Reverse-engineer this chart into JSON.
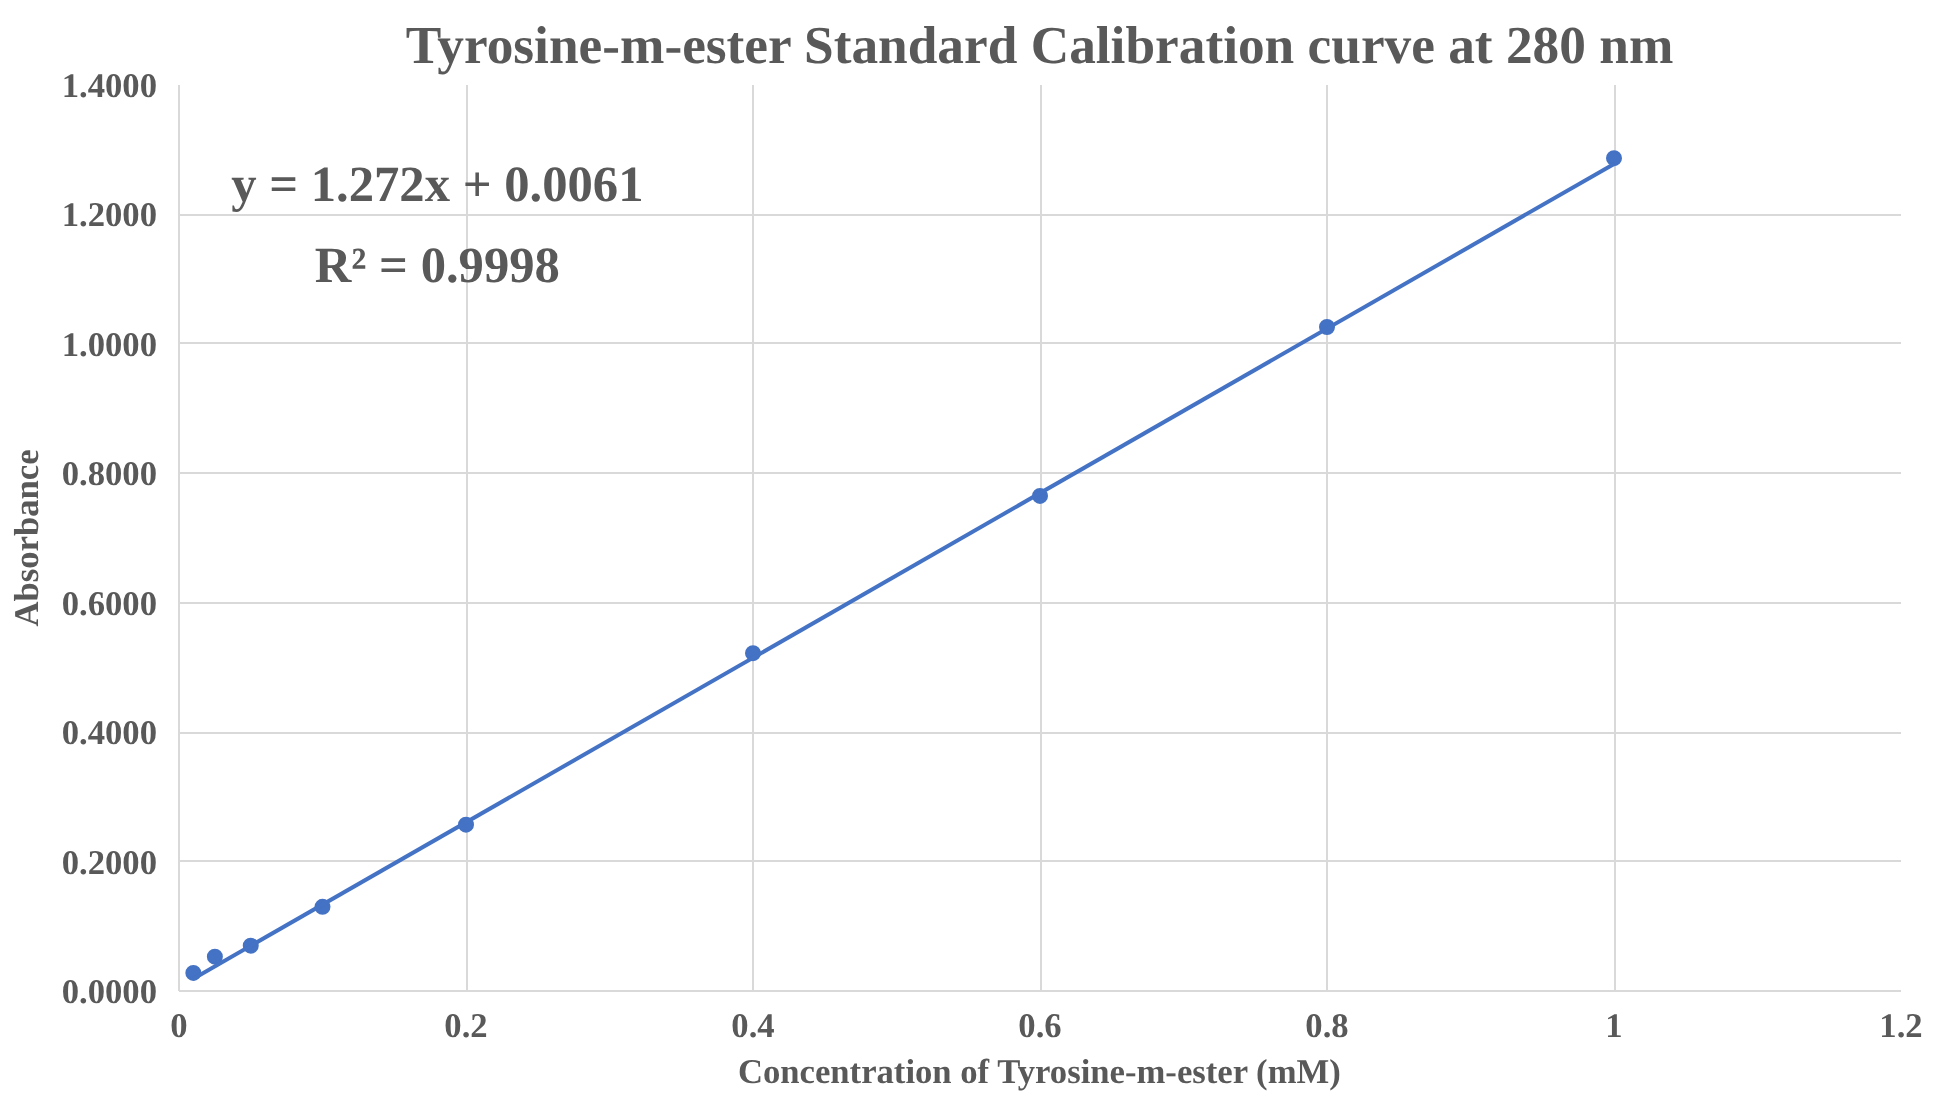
{
  "chart_data": {
    "type": "scatter",
    "title": "Tyrosine-m-ester Standard Calibration curve at 280 nm",
    "xlabel": "Concentration of Tyrosine-m-ester (mM)",
    "ylabel": "Absorbance",
    "x": [
      0.01,
      0.025,
      0.05,
      0.1,
      0.2,
      0.4,
      0.6,
      0.8,
      1.0
    ],
    "series": [
      {
        "color": "#4472c4",
        "marker": "circle",
        "values": [
          0.028,
          0.053,
          0.07,
          0.13,
          0.257,
          0.522,
          0.765,
          1.026,
          1.287
        ]
      },
      {
        "type": "line",
        "color": "#4472c4",
        "marker": "none",
        "line_style": "solid",
        "x": [
          0.01,
          1.0
        ],
        "values": [
          0.019,
          1.278
        ]
      }
    ],
    "annotations": [
      "y = 1.272x + 0.0061",
      "R² = 0.9998"
    ],
    "xlim": [
      0,
      1.2
    ],
    "xticks": [
      0,
      0.2,
      0.4,
      0.6,
      0.8,
      1,
      1.2
    ],
    "ylim": [
      0,
      1.4
    ],
    "yticks": [
      {
        "value": 0,
        "label": "0.0000"
      },
      {
        "value": 0.2,
        "label": "0.2000"
      },
      {
        "value": 0.4,
        "label": "0.4000"
      },
      {
        "value": 0.6,
        "label": "0.6000"
      },
      {
        "value": 0.8,
        "label": "0.8000"
      },
      {
        "value": 1.0,
        "label": "1.0000"
      },
      {
        "value": 1.2,
        "label": "1.2000"
      },
      {
        "value": 1.4,
        "label": "1.4000"
      }
    ],
    "grid": true
  }
}
